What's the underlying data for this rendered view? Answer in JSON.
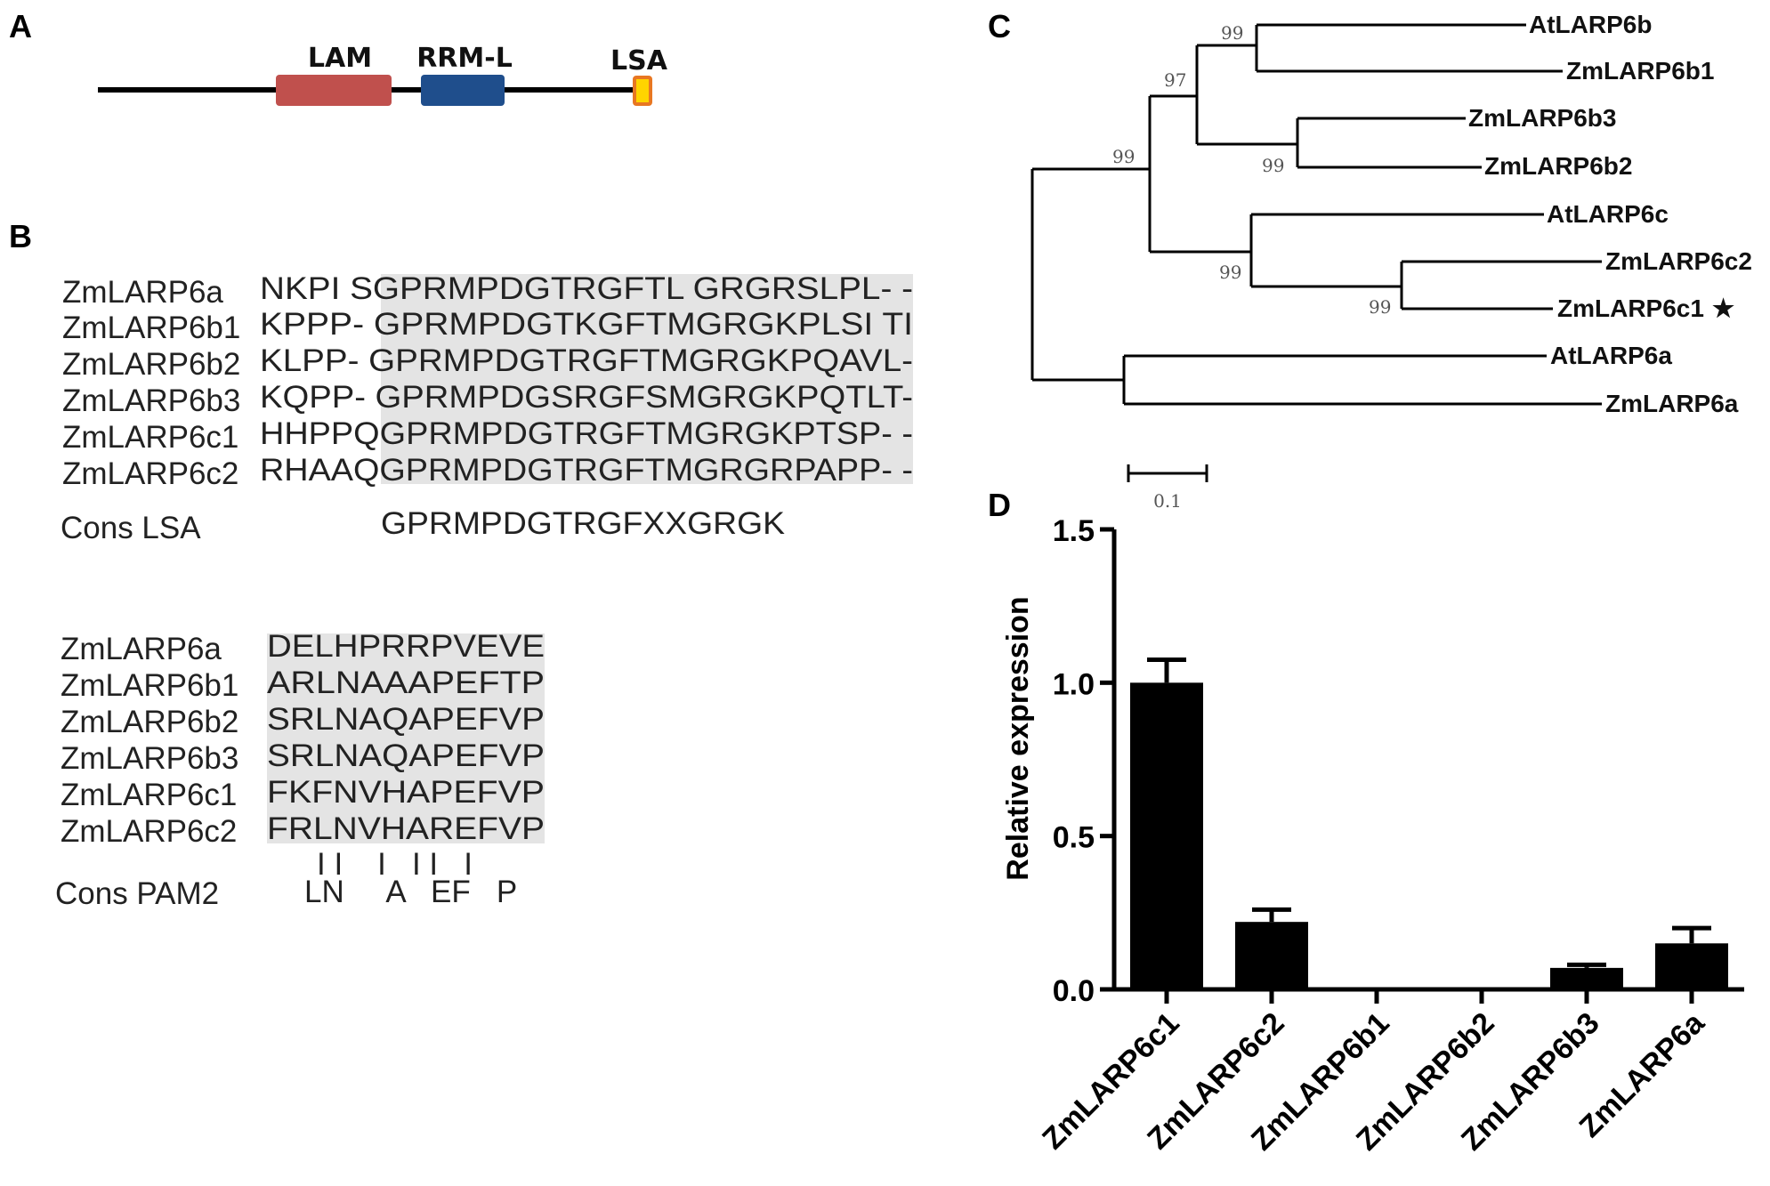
{
  "panels": {
    "a": "A",
    "b": "B",
    "c": "C",
    "d": "D"
  },
  "domain_map": {
    "domains": [
      {
        "label": "LAM",
        "color": "#c0504d"
      },
      {
        "label": "RRM-L",
        "color": "#1f4e8c"
      },
      {
        "label": "LSA",
        "color": "#ffd400"
      }
    ],
    "lsa_border": "#e87722"
  },
  "alignment_lsa": {
    "rows": [
      {
        "name": "ZmLARP6a",
        "seq": "NKPI SGPRMPDGTRGFTL GRGRSLPL- -"
      },
      {
        "name": "ZmLARP6b1",
        "seq": "KPPP- GPRMPDGTKGFTMGRGKPLSI TI"
      },
      {
        "name": "ZmLARP6b2",
        "seq": "KLPP- GPRMPDGTRGFTMGRGKPQAVL-"
      },
      {
        "name": "ZmLARP6b3",
        "seq": "KQPP- GPRMPDGSRGFSMGRGKPQTLT-"
      },
      {
        "name": "ZmLARP6c1",
        "seq": "HHPPQGPRMPDGTRGFTMGRGKPTSP- -"
      },
      {
        "name": "ZmLARP6c2",
        "seq": "RHAAQGPRMPDGTRGFTMGRGRPAPP- -"
      }
    ],
    "consensus_label": "Cons LSA",
    "consensus": "GPRMPDGTRGFXXGRGK"
  },
  "alignment_pam2": {
    "rows": [
      {
        "name": "ZmLARP6a",
        "seq": "DELHPRRPVEVE"
      },
      {
        "name": "ZmLARP6b1",
        "seq": "ARLNAAAPEFTP"
      },
      {
        "name": "ZmLARP6b2",
        "seq": "SRLNAQAPEFVP"
      },
      {
        "name": "ZmLARP6b3",
        "seq": "SRLNAQAPEFVP"
      },
      {
        "name": "ZmLARP6c1",
        "seq": "FKFNVHAPEFVP"
      },
      {
        "name": "ZmLARP6c2",
        "seq": "FRLNVHAREFVP"
      }
    ],
    "marks": "I I    I   I I   I",
    "consensus_label": "Cons PAM2",
    "consensus": "LN     A   EF   P"
  },
  "tree": {
    "taxa": [
      "AtLARP6b",
      "ZmLARP6b1",
      "ZmLARP6b3",
      "ZmLARP6b2",
      "AtLARP6c",
      "ZmLARP6c2",
      "ZmLARP6c1",
      "AtLARP6a",
      "ZmLARP6a"
    ],
    "bootstraps": [
      "99",
      "97",
      "99",
      "99",
      "99",
      "99"
    ],
    "star": "★",
    "star_color": "#e0001b",
    "scale_label": "0.1"
  },
  "chart_data": {
    "type": "bar",
    "categories": [
      "ZmLARP6c1",
      "ZmLARP6c2",
      "ZmLARP6b1",
      "ZmLARP6b2",
      "ZmLARP6b3",
      "ZmLARP6a"
    ],
    "values": [
      1.0,
      0.22,
      0.0,
      0.0,
      0.07,
      0.15
    ],
    "errors": [
      0.075,
      0.04,
      0.0,
      0.0,
      0.01,
      0.05
    ],
    "ylabel": "Relative expression",
    "ylim": [
      0,
      1.5
    ],
    "yticks": [
      "0.0",
      "0.5",
      "1.0",
      "1.5"
    ],
    "bar_color": "#000000"
  }
}
